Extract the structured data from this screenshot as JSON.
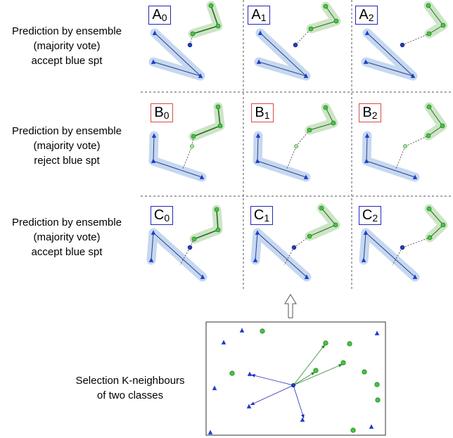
{
  "row_captions": [
    {
      "line1": "Prediction by ensemble",
      "line2": "(majority vote)",
      "line3": "accept blue spt"
    },
    {
      "line1": "Prediction by ensemble",
      "line2": "(majority vote)",
      "line3": "reject blue spt"
    },
    {
      "line1": "Prediction by ensemble",
      "line2": "(majority vote)",
      "line3": "accept blue spt"
    }
  ],
  "tile_labels": [
    [
      {
        "letter": "A",
        "index": "0"
      },
      {
        "letter": "A",
        "index": "1"
      },
      {
        "letter": "A",
        "index": "2"
      }
    ],
    [
      {
        "letter": "B",
        "index": "0"
      },
      {
        "letter": "B",
        "index": "1"
      },
      {
        "letter": "B",
        "index": "2"
      }
    ],
    [
      {
        "letter": "C",
        "index": "0"
      },
      {
        "letter": "C",
        "index": "1"
      },
      {
        "letter": "C",
        "index": "2"
      }
    ]
  ],
  "selection_caption": {
    "line1": "Selection K-neighbours",
    "line2": "of two classes"
  },
  "colors": {
    "blue_class": "#1c3fc8",
    "green_class": "#3ec93e",
    "blue_hull": "#c6d8f0",
    "green_hull": "#cce5c4",
    "accept_frame": "#2424b8",
    "reject_frame": "#e04848",
    "grid_line": "#555555"
  }
}
